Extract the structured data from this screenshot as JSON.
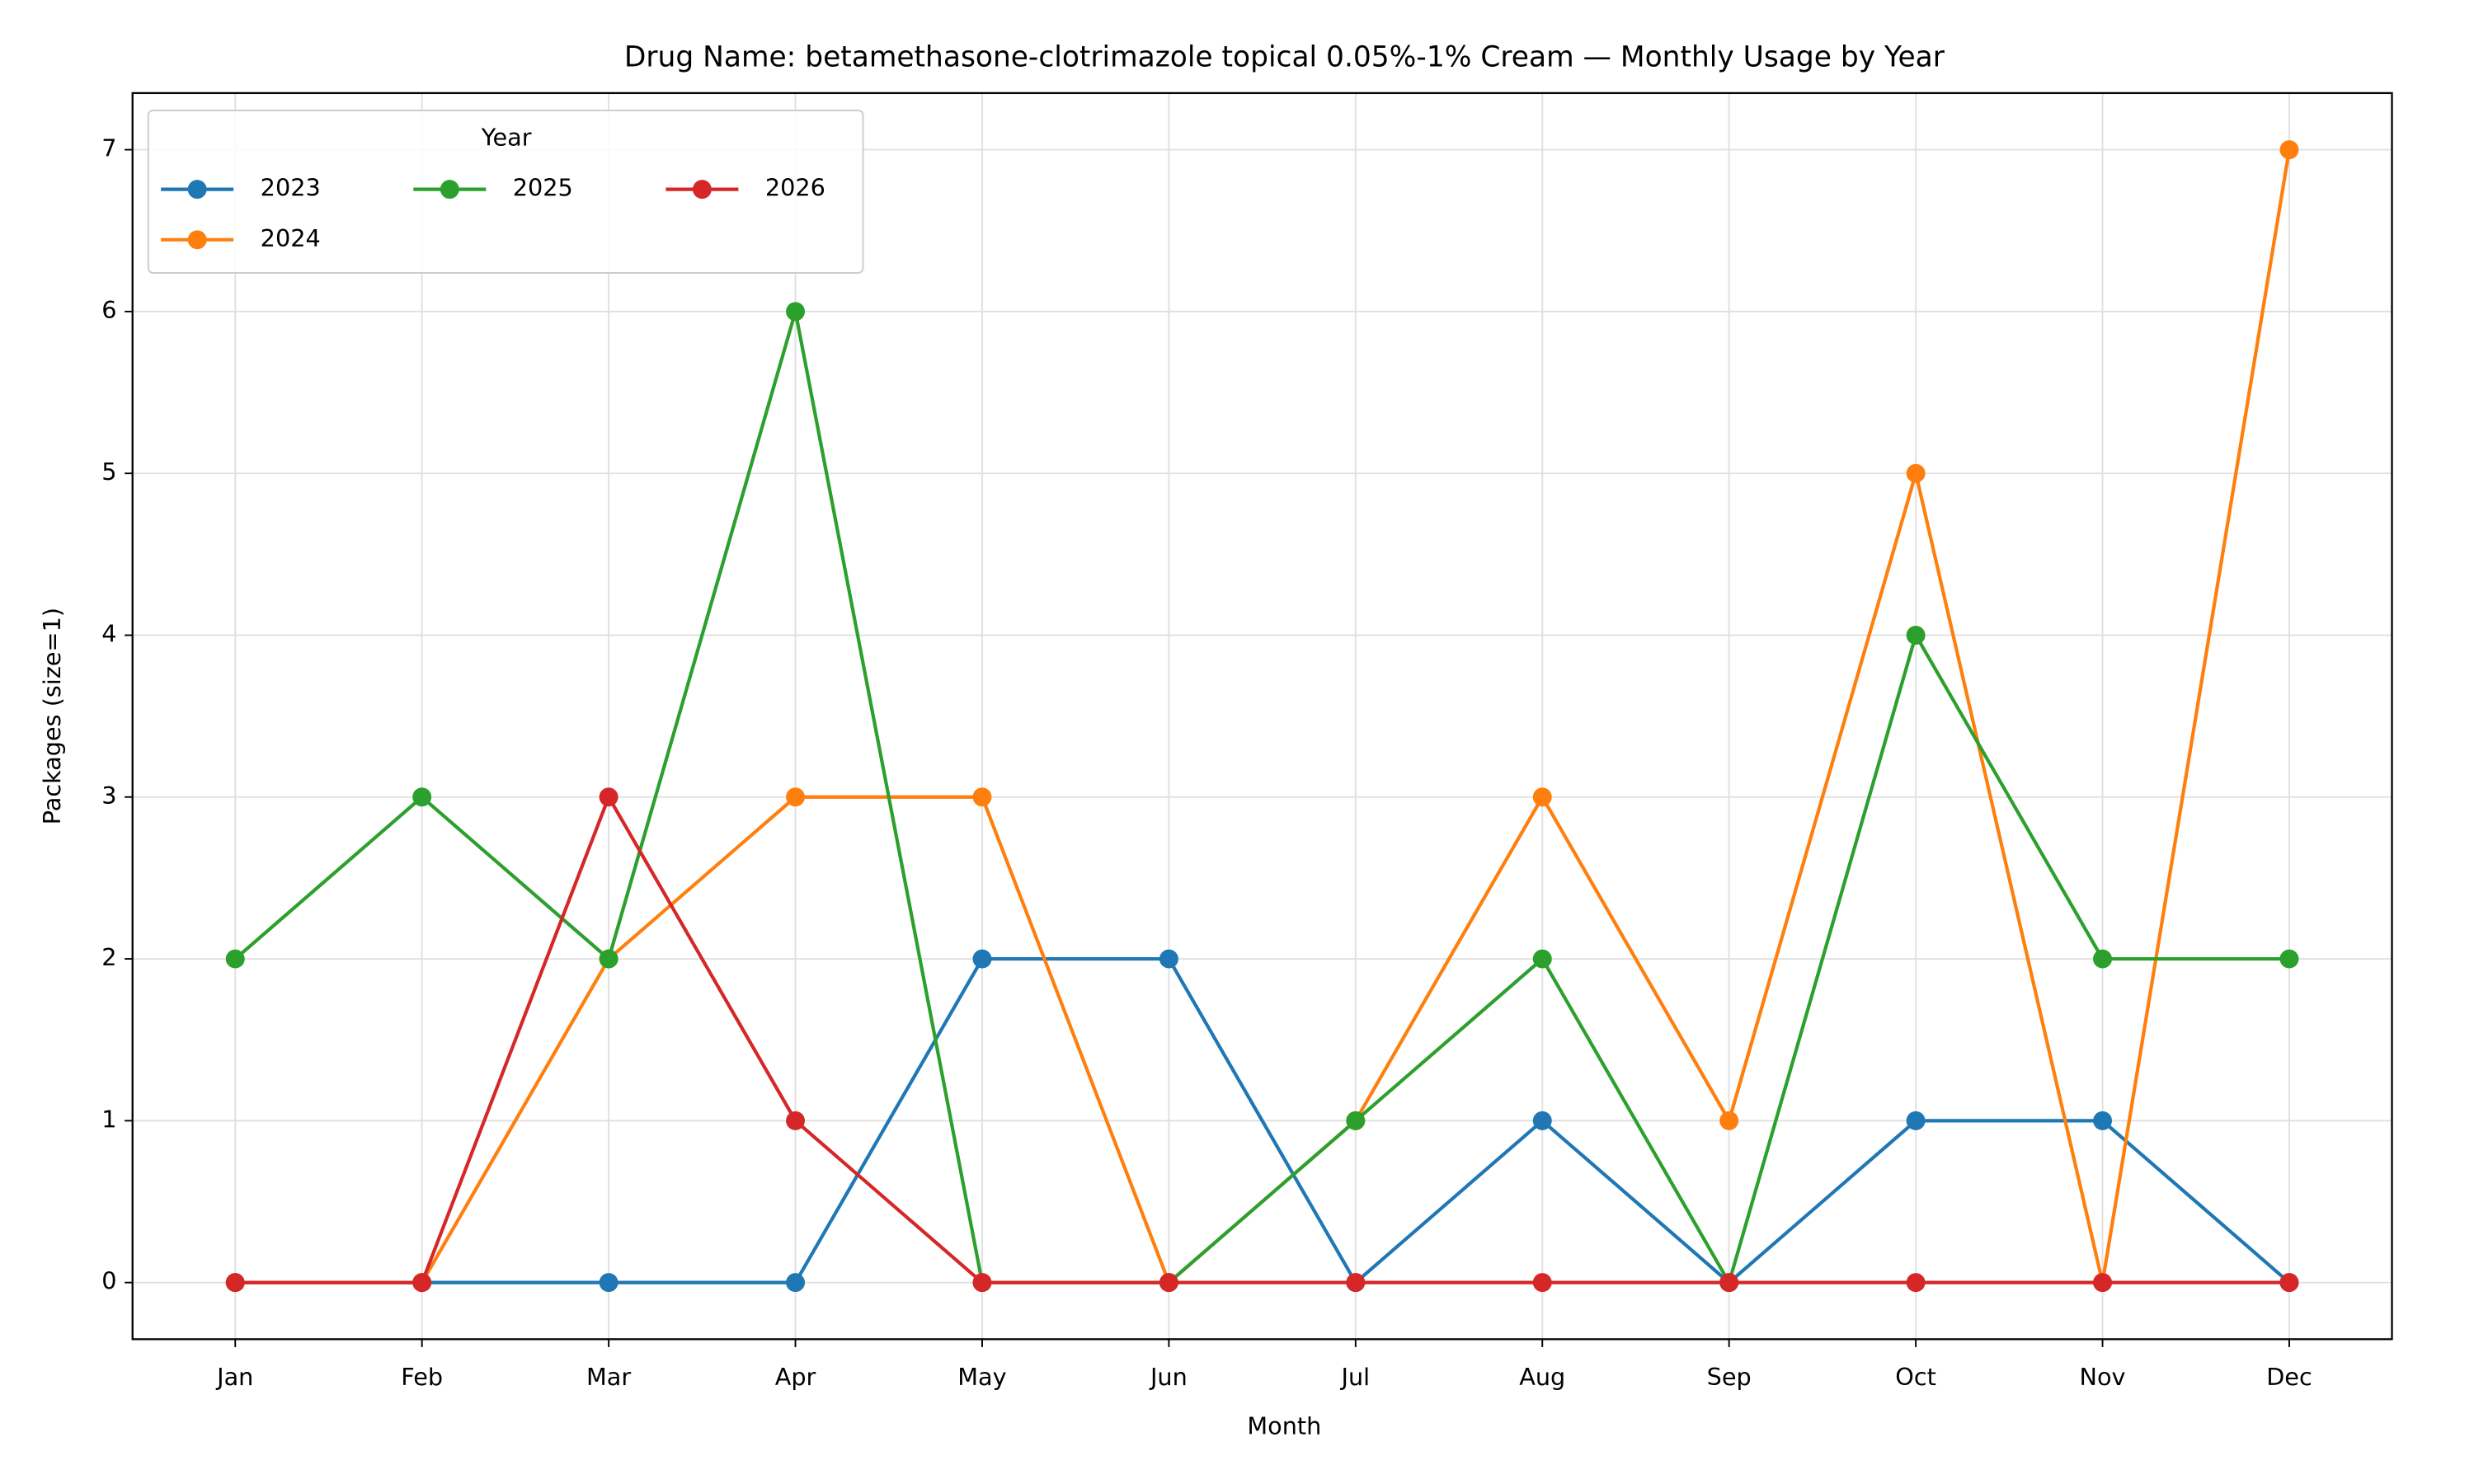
{
  "chart_data": {
    "type": "line",
    "title": "Drug Name: betamethasone-clotrimazole topical 0.05%-1% Cream — Monthly Usage by Year",
    "x_label": "Month",
    "y_label": "Packages (size=1)",
    "categories": [
      "Jan",
      "Feb",
      "Mar",
      "Apr",
      "May",
      "Jun",
      "Jul",
      "Aug",
      "Sep",
      "Oct",
      "Nov",
      "Dec"
    ],
    "series": [
      {
        "name": "2023",
        "color": "#1f77b4",
        "values": [
          0,
          0,
          0,
          0,
          2,
          2,
          0,
          1,
          0,
          1,
          1,
          0
        ]
      },
      {
        "name": "2024",
        "color": "#ff7f0e",
        "values": [
          0,
          0,
          2,
          3,
          3,
          0,
          1,
          3,
          1,
          5,
          0,
          7
        ]
      },
      {
        "name": "2025",
        "color": "#2ca02c",
        "values": [
          2,
          3,
          2,
          6,
          0,
          0,
          1,
          2,
          0,
          4,
          2,
          2
        ]
      },
      {
        "name": "2026",
        "color": "#d62728",
        "values": [
          0,
          0,
          3,
          1,
          0,
          0,
          0,
          0,
          0,
          0,
          0,
          0
        ]
      }
    ],
    "ylim": [
      -0.35,
      7.35
    ],
    "yticks": [
      0,
      1,
      2,
      3,
      4,
      5,
      6,
      7
    ],
    "grid": true,
    "legend_title": "Year",
    "legend_position": "upper left"
  }
}
